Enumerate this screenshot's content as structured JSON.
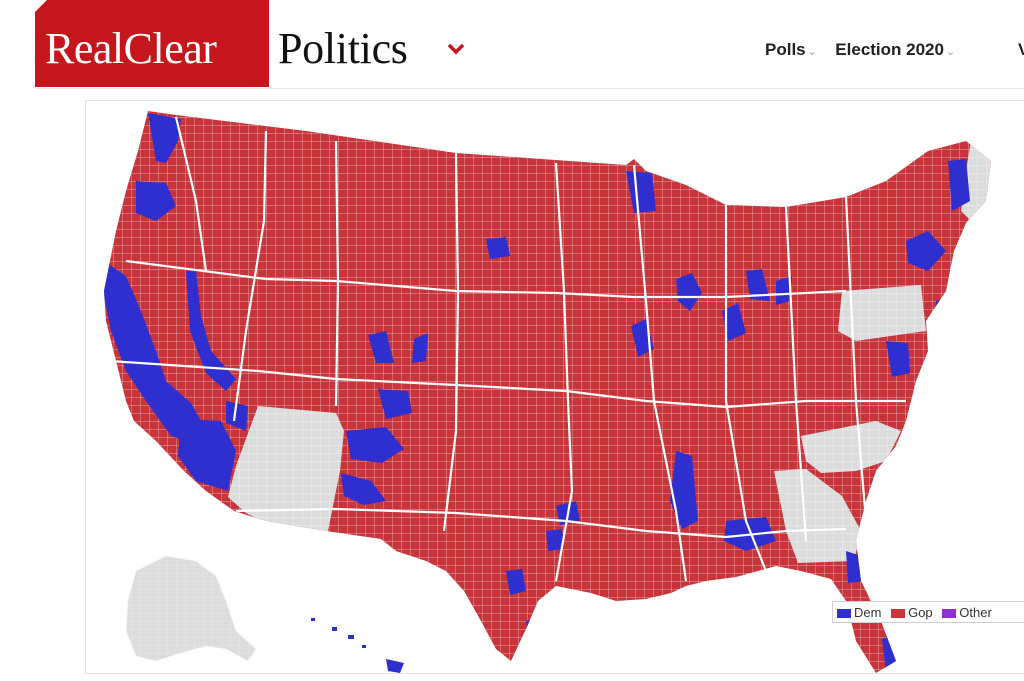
{
  "header": {
    "logo_part1": "RealClear",
    "logo_part2": "Politics",
    "nav": [
      {
        "label": "Polls"
      },
      {
        "label": "Election 2020"
      }
    ],
    "nav_overflow": "V"
  },
  "map": {
    "legend": [
      {
        "label": "Dem",
        "color": "#2f2fd0"
      },
      {
        "label": "Gop",
        "color": "#c9333a"
      },
      {
        "label": "Other",
        "color": "#8e2fd0"
      }
    ],
    "colors": {
      "dem": "#2f2fd0",
      "gop": "#c9333a",
      "no_data": "#dcdcdc"
    }
  }
}
